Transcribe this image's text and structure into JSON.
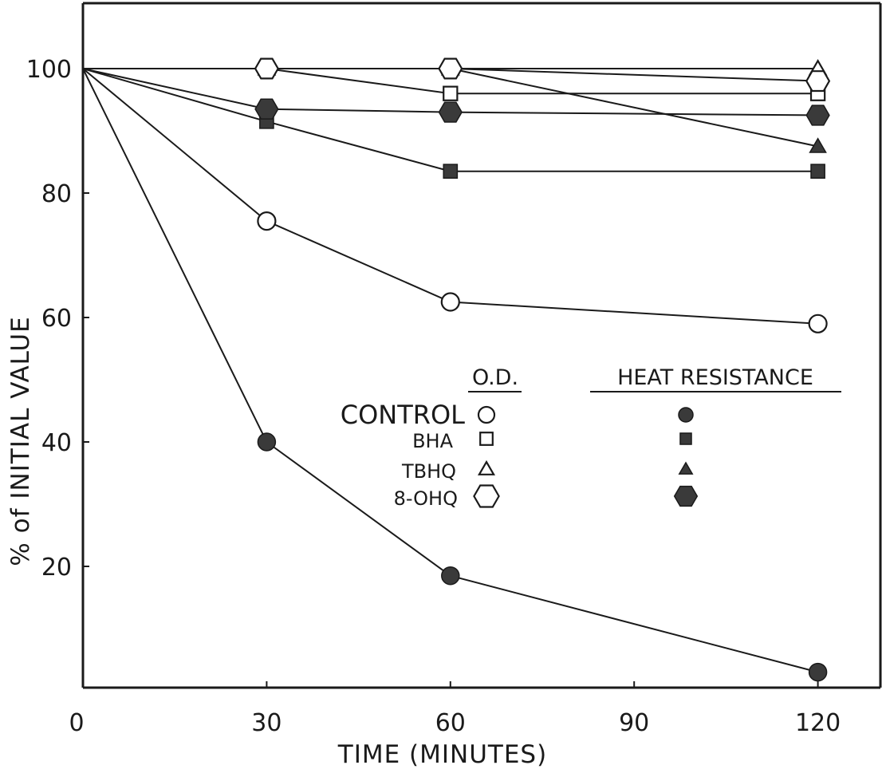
{
  "chart_data": {
    "type": "line",
    "title": "",
    "xlabel": "TIME (MINUTES)",
    "ylabel": "% of INITIAL VALUE",
    "xlim": [
      0,
      130
    ],
    "ylim": [
      0,
      110
    ],
    "xticks": [
      0,
      30,
      60,
      90,
      120
    ],
    "yticks": [
      20,
      40,
      60,
      80,
      100
    ],
    "x": [
      0,
      30,
      60,
      120
    ],
    "grid": false,
    "legend_position": "center-right",
    "legend_headers": {
      "od": "O.D.",
      "heat": "HEAT RESISTANCE"
    },
    "legend_rows": [
      "CONTROL",
      "BHA",
      "TBHQ",
      "8-OHQ"
    ],
    "series": [
      {
        "group": "CONTROL",
        "measure": "O.D.",
        "marker": "circle-open",
        "values": [
          100,
          75.5,
          62.5,
          59
        ]
      },
      {
        "group": "CONTROL",
        "measure": "HEAT RESISTANCE",
        "marker": "circle-filled",
        "values": [
          100,
          40,
          18.5,
          3
        ]
      },
      {
        "group": "BHA",
        "measure": "O.D.",
        "marker": "square-open",
        "values": [
          100,
          100,
          96,
          96
        ]
      },
      {
        "group": "BHA",
        "measure": "HEAT RESISTANCE",
        "marker": "square-filled",
        "values": [
          100,
          91.5,
          83.5,
          83.5
        ]
      },
      {
        "group": "TBHQ",
        "measure": "O.D.",
        "marker": "triangle-open",
        "values": [
          100,
          100,
          100,
          100
        ]
      },
      {
        "group": "TBHQ",
        "measure": "HEAT RESISTANCE",
        "marker": "triangle-filled",
        "values": [
          100,
          100,
          100,
          87.5
        ]
      },
      {
        "group": "8-OHQ",
        "measure": "O.D.",
        "marker": "hexagon-open",
        "values": [
          100,
          100,
          100,
          98
        ]
      },
      {
        "group": "8-OHQ",
        "measure": "HEAT RESISTANCE",
        "marker": "hexagon-filled",
        "values": [
          100,
          93.5,
          93,
          92.5
        ]
      }
    ],
    "colors": {
      "ink": "#1a1a1a",
      "background": "#ffffff",
      "filled_marker": "#3a3a3a"
    }
  }
}
